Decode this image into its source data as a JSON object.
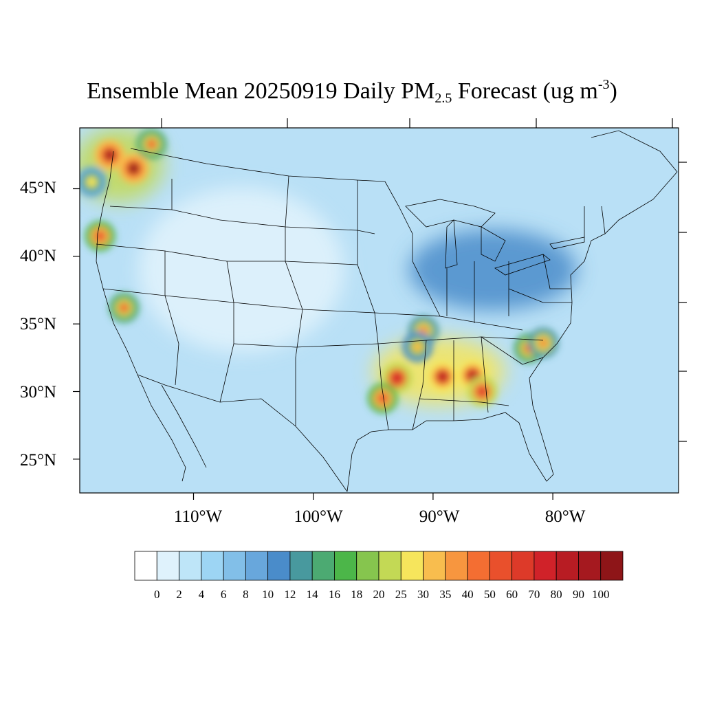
{
  "title": {
    "main": "Ensemble Mean 20250919 Daily PM",
    "subscript": "2.5",
    "middle": " Forecast (ug m",
    "superscript": "-3",
    "end": ")"
  },
  "map": {
    "region": "Contiguous United States",
    "lat_range": [
      22.5,
      49.5
    ],
    "lon_range": [
      -119.5,
      -69.5
    ],
    "lat_labels": [
      "45°N",
      "40°N",
      "35°N",
      "30°N",
      "25°N"
    ],
    "lon_labels": [
      "110°W",
      "100°W",
      "90°W",
      "80°W"
    ],
    "colors": {
      "background_low": "#dcf0fb",
      "background_mid": "#b9e0f6",
      "water": "#d6eef9",
      "boundary_line": "#000000"
    }
  },
  "colorbar": {
    "labels": [
      "0",
      "2",
      "4",
      "6",
      "8",
      "10",
      "12",
      "14",
      "16",
      "18",
      "20",
      "25",
      "30",
      "35",
      "40",
      "50",
      "60",
      "70",
      "80",
      "90",
      "100"
    ],
    "colors": [
      "#ffffff",
      "#dff2fc",
      "#bee5f8",
      "#9dd5f4",
      "#82bfe8",
      "#68a7dc",
      "#4a8cca",
      "#48999e",
      "#4caa72",
      "#4cb649",
      "#86c54e",
      "#c3d955",
      "#f6e55c",
      "#f8bd4e",
      "#f7963f",
      "#f46e32",
      "#e9502c",
      "#dd3a29",
      "#d02229",
      "#b81c23",
      "#a5191f",
      "#8e1518"
    ]
  },
  "chart_data": {
    "type": "heatmap",
    "title": "Ensemble Mean 20250919 Daily PM2.5 Forecast (ug m-3)",
    "units": "ug m-3",
    "levels": [
      0,
      2,
      4,
      6,
      8,
      10,
      12,
      14,
      16,
      18,
      20,
      25,
      30,
      35,
      40,
      50,
      60,
      70,
      80,
      90,
      100
    ],
    "hotspots": [
      {
        "lon": -117.0,
        "lat": 47.5,
        "value": 90
      },
      {
        "lon": -115.0,
        "lat": 46.5,
        "value": 100
      },
      {
        "lon": -113.5,
        "lat": 48.3,
        "value": 40
      },
      {
        "lon": -118.5,
        "lat": 45.5,
        "value": 25
      },
      {
        "lon": -117.8,
        "lat": 41.5,
        "value": 50
      },
      {
        "lon": -115.8,
        "lat": 36.2,
        "value": 40
      },
      {
        "lon": -93.0,
        "lat": 31.0,
        "value": 70
      },
      {
        "lon": -89.2,
        "lat": 31.1,
        "value": 80
      },
      {
        "lon": -86.7,
        "lat": 31.2,
        "value": 80
      },
      {
        "lon": -85.9,
        "lat": 30.0,
        "value": 60
      },
      {
        "lon": -94.2,
        "lat": 29.5,
        "value": 50
      },
      {
        "lon": -82.0,
        "lat": 33.2,
        "value": 40
      },
      {
        "lon": -80.8,
        "lat": 33.6,
        "value": 35
      },
      {
        "lon": -90.8,
        "lat": 34.5,
        "value": 35
      },
      {
        "lon": -91.3,
        "lat": 33.3,
        "value": 30
      }
    ],
    "elevated_regions": [
      {
        "name": "Gulf Coast / Lower Mississippi",
        "lon_range": [
          -95,
          -84
        ],
        "lat_range": [
          29,
          34
        ],
        "value": 25
      },
      {
        "name": "Pacific Northwest",
        "lon_range": [
          -120,
          -112.5
        ],
        "lat_range": [
          44,
          49.5
        ],
        "value": 20
      },
      {
        "name": "Ohio Valley / Great Lakes",
        "lon_range": [
          -92,
          -78
        ],
        "lat_range": [
          36,
          42
        ],
        "value": 10
      }
    ]
  }
}
